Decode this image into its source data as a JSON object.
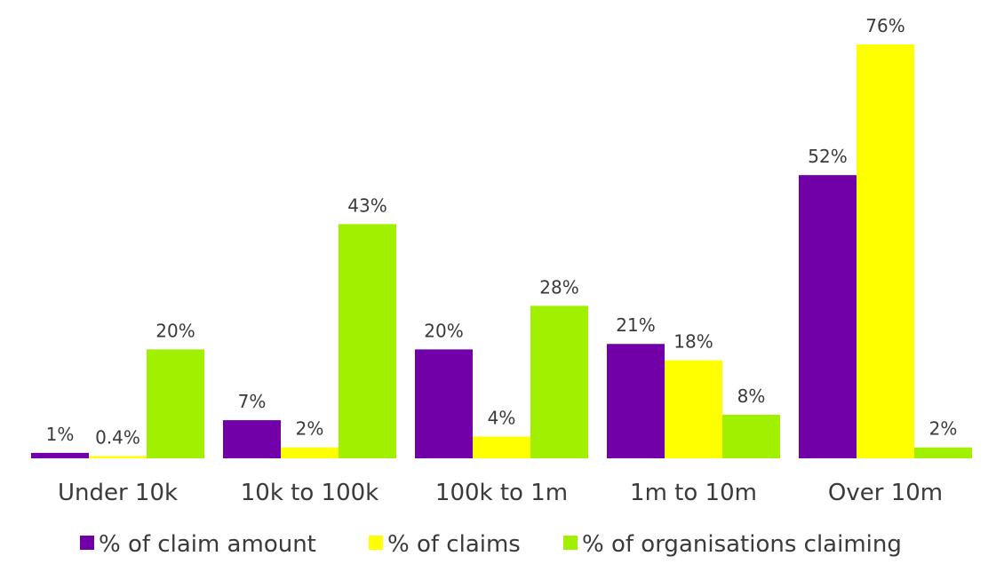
{
  "chart_data": {
    "type": "bar",
    "categories": [
      "Under 10k",
      "10k to 100k",
      "100k to 1m",
      "1m to 10m",
      "Over 10m"
    ],
    "series": [
      {
        "name": "% of claim amount",
        "color": "#7100A8",
        "values": [
          1,
          7,
          20,
          21,
          52
        ],
        "labels": [
          "1%",
          "7%",
          "20%",
          "21%",
          "52%"
        ]
      },
      {
        "name": "% of claims",
        "color": "#FFFF00",
        "values": [
          0.4,
          2,
          4,
          18,
          76
        ],
        "labels": [
          "0.4%",
          "2%",
          "4%",
          "18%",
          "76%"
        ]
      },
      {
        "name": "% of organisations claiming",
        "color": "#A0F000",
        "values": [
          20,
          43,
          28,
          8,
          2
        ],
        "labels": [
          "20%",
          "43%",
          "28%",
          "8%",
          "2%"
        ]
      }
    ],
    "title": "",
    "xlabel": "",
    "ylabel": "",
    "ylim": [
      0,
      80
    ],
    "grid": false,
    "legend_position": "bottom"
  }
}
